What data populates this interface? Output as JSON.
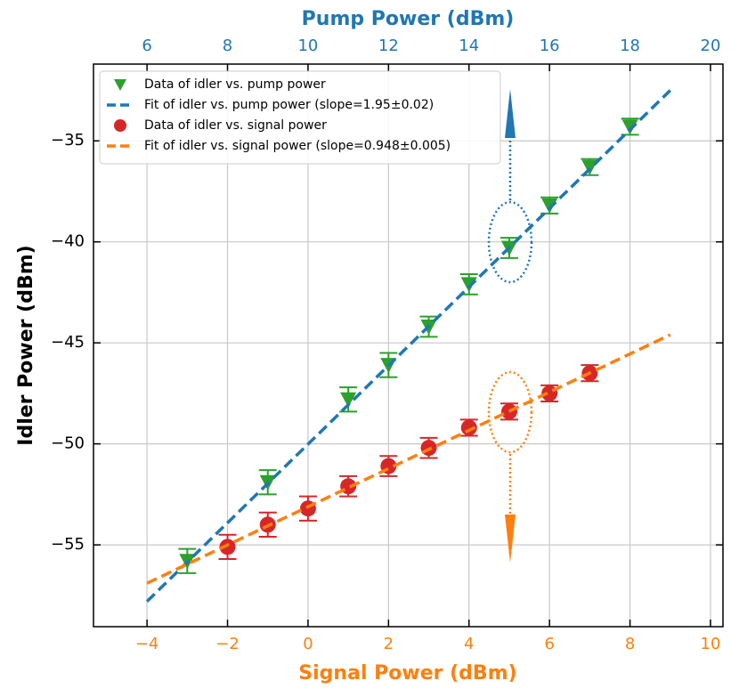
{
  "chart_data": {
    "type": "scatter",
    "xlabel": "Signal Power (dBm)",
    "x2label": "Pump Power (dBm)",
    "ylabel": "Idler Power (dBm)",
    "xlim": [
      -5.33,
      10.31
    ],
    "xticks": [
      {
        "value": -4,
        "label": "−4"
      },
      {
        "value": -2,
        "label": "−2"
      },
      0,
      2,
      4,
      6,
      8,
      10
    ],
    "x2lim": [
      4.67,
      20.31
    ],
    "x2ticks": [
      6,
      8,
      10,
      12,
      14,
      16,
      18,
      20
    ],
    "ylim": [
      -59.05,
      -31.2
    ],
    "yticks": [
      {
        "value": -55,
        "label": "−55"
      },
      {
        "value": -50,
        "label": "−50"
      },
      {
        "value": -45,
        "label": "−45"
      },
      {
        "value": -40,
        "label": "−40"
      },
      {
        "value": -35,
        "label": "−35"
      }
    ],
    "grid": true,
    "legend": "upper left",
    "xlabel_color": "#ff7f0e",
    "x2label_color": "#1f77b4",
    "series": [
      {
        "name": "Data of idler vs. pump power",
        "type": "scatter",
        "marker": "triangle-down",
        "color": "#2ca02c",
        "axis": "x2",
        "x": [
          7,
          9,
          11,
          12,
          13,
          14,
          15,
          16,
          17,
          18
        ],
        "values": [
          -55.8,
          -51.9,
          -47.8,
          -46.1,
          -44.2,
          -42.1,
          -40.3,
          -38.2,
          -36.3,
          -34.3
        ],
        "errors": [
          0.6,
          0.6,
          0.6,
          0.6,
          0.5,
          0.5,
          0.5,
          0.4,
          0.4,
          0.4
        ]
      },
      {
        "name": "Fit of idler vs. pump power (slope=1.95±0.02)",
        "type": "line",
        "color": "#1f77b4",
        "axis": "x2",
        "x": [
          6,
          19
        ],
        "values": [
          -57.8,
          -32.5
        ]
      },
      {
        "name": "Data of idler vs. signal power",
        "type": "scatter",
        "marker": "circle",
        "color": "#d62728",
        "x": [
          -2,
          -1,
          0,
          1,
          2,
          3,
          4,
          5,
          6,
          7
        ],
        "values": [
          -55.1,
          -54.0,
          -53.2,
          -52.1,
          -51.1,
          -50.2,
          -49.2,
          -48.4,
          -47.5,
          -46.5
        ],
        "errors": [
          0.6,
          0.6,
          0.6,
          0.5,
          0.5,
          0.5,
          0.4,
          0.4,
          0.4,
          0.4
        ]
      },
      {
        "name": "Fit of idler vs. signal power (slope=0.948±0.005)",
        "type": "line",
        "color": "#ff7f0e",
        "x": [
          -4,
          9
        ],
        "values": [
          -56.9,
          -44.6
        ]
      }
    ]
  }
}
